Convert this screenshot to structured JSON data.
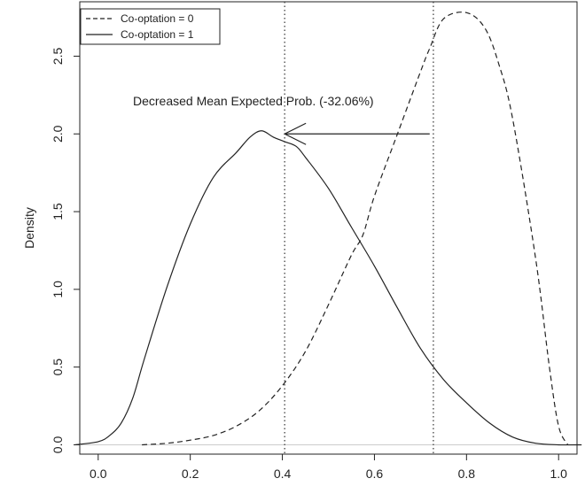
{
  "chart_data": {
    "type": "line",
    "title": "",
    "xlabel": "",
    "ylabel": "Density",
    "xlim": [
      -0.04,
      1.04
    ],
    "ylim": [
      -0.06,
      2.85
    ],
    "x_ticks": [
      {
        "value": 0.0,
        "label": "0.0"
      },
      {
        "value": 0.2,
        "label": "0.2"
      },
      {
        "value": 0.4,
        "label": "0.4"
      },
      {
        "value": 0.6,
        "label": "0.6"
      },
      {
        "value": 0.8,
        "label": "0.8"
      },
      {
        "value": 1.0,
        "label": "1.0"
      }
    ],
    "y_ticks": [
      {
        "value": 0.0,
        "label": "0.0"
      },
      {
        "value": 0.5,
        "label": "0.5"
      },
      {
        "value": 1.0,
        "label": "1.0"
      },
      {
        "value": 1.5,
        "label": "1.5"
      },
      {
        "value": 2.0,
        "label": "2.0"
      },
      {
        "value": 2.5,
        "label": "2.5"
      }
    ],
    "grid": false,
    "legend_position": "top-left",
    "series": [
      {
        "name": "Co-optation = 0",
        "line_style": "dashed",
        "color": "#222222",
        "x": [
          0.095,
          0.15,
          0.2,
          0.25,
          0.3,
          0.35,
          0.4,
          0.45,
          0.5,
          0.55,
          0.575,
          0.6,
          0.65,
          0.7,
          0.72,
          0.75,
          0.8,
          0.84,
          0.87,
          0.9,
          0.95,
          0.98,
          1.0,
          1.02
        ],
        "y": [
          0.0,
          0.01,
          0.03,
          0.06,
          0.12,
          0.22,
          0.38,
          0.6,
          0.9,
          1.22,
          1.35,
          1.6,
          2.0,
          2.4,
          2.55,
          2.74,
          2.78,
          2.68,
          2.45,
          2.1,
          1.2,
          0.5,
          0.12,
          0.0
        ]
      },
      {
        "name": "Co-optation = 1",
        "line_style": "solid",
        "color": "#222222",
        "x": [
          -0.05,
          0.0,
          0.025,
          0.05,
          0.075,
          0.1,
          0.15,
          0.2,
          0.25,
          0.3,
          0.33,
          0.355,
          0.38,
          0.405,
          0.43,
          0.45,
          0.5,
          0.55,
          0.6,
          0.65,
          0.7,
          0.75,
          0.8,
          0.85,
          0.9,
          0.95,
          1.0,
          1.05
        ],
        "y": [
          0.0,
          0.02,
          0.06,
          0.14,
          0.3,
          0.55,
          1.02,
          1.42,
          1.72,
          1.88,
          1.98,
          2.02,
          1.98,
          1.95,
          1.92,
          1.85,
          1.65,
          1.4,
          1.15,
          0.88,
          0.62,
          0.42,
          0.27,
          0.14,
          0.05,
          0.01,
          0.0,
          0.0
        ]
      }
    ],
    "vertical_lines": [
      {
        "x": 0.405,
        "style": "dotted"
      },
      {
        "x": 0.728,
        "style": "dotted"
      }
    ],
    "annotations": [
      {
        "text": "Decreased Mean Expected Prob. (-32.06%)",
        "arrow_from": [
          0.72,
          2.0
        ],
        "arrow_to": [
          0.405,
          2.0
        ]
      }
    ]
  }
}
